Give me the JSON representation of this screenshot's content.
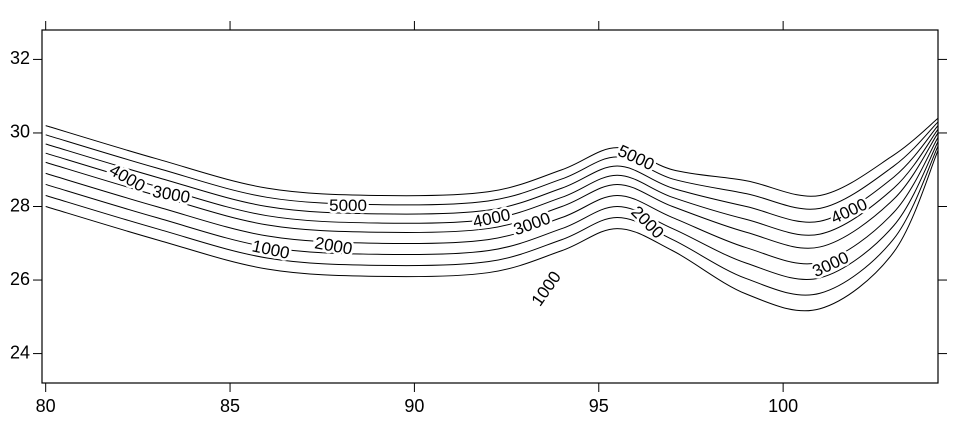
{
  "chart_data": {
    "type": "contour",
    "xlim": [
      79.9,
      104.2
    ],
    "ylim": [
      23.2,
      32.8
    ],
    "xticks": [
      80,
      85,
      90,
      95,
      100
    ],
    "yticks": [
      24,
      26,
      28,
      30,
      32
    ],
    "color": "#000000",
    "x": [
      80,
      83,
      86,
      89,
      92,
      94,
      95.5,
      97,
      99,
      101,
      103,
      104.2
    ],
    "levels": [
      1000,
      1500,
      2000,
      2500,
      3000,
      3500,
      4000,
      4500,
      5000
    ],
    "lines": [
      [
        28.0,
        27.1,
        26.3,
        26.1,
        26.2,
        26.8,
        27.4,
        26.8,
        25.62,
        25.22,
        26.76,
        29.52
      ],
      [
        28.3,
        27.4,
        26.6,
        26.4,
        26.5,
        27.1,
        27.7,
        27.1,
        26.04,
        25.64,
        27.12,
        29.64
      ],
      [
        28.6,
        27.7,
        26.9,
        26.7,
        26.8,
        27.4,
        28.0,
        27.4,
        26.46,
        26.06,
        27.48,
        29.76
      ],
      [
        28.9,
        28.0,
        27.2,
        27.0,
        27.1,
        27.7,
        28.3,
        27.7,
        26.88,
        26.48,
        27.84,
        29.88
      ],
      [
        29.2,
        28.3,
        27.5,
        27.3,
        27.4,
        28.0,
        28.6,
        28.0,
        27.3,
        26.9,
        28.2,
        30.0
      ],
      [
        29.45,
        28.55,
        27.75,
        27.55,
        27.65,
        28.25,
        28.85,
        28.25,
        27.65,
        27.25,
        28.5,
        30.1
      ],
      [
        29.7,
        28.8,
        28.0,
        27.8,
        27.9,
        28.5,
        29.1,
        28.5,
        28.0,
        27.6,
        28.8,
        30.2
      ],
      [
        29.95,
        29.05,
        28.25,
        28.05,
        28.15,
        28.75,
        29.35,
        28.75,
        28.35,
        27.95,
        29.1,
        30.3
      ],
      [
        30.2,
        29.3,
        28.5,
        28.3,
        28.4,
        29.0,
        29.6,
        29.0,
        28.7,
        28.3,
        29.4,
        30.4
      ]
    ],
    "contour_labels": [
      {
        "value": 4000,
        "x": 82.2,
        "y": 28.75,
        "angle": 30
      },
      {
        "value": 3000,
        "x": 83.4,
        "y": 28.3,
        "angle": 10
      },
      {
        "value": 5000,
        "x": 88.2,
        "y": 28.0,
        "angle": 0
      },
      {
        "value": 2000,
        "x": 87.8,
        "y": 26.9,
        "angle": 10
      },
      {
        "value": 1000,
        "x": 86.1,
        "y": 26.8,
        "angle": 12
      },
      {
        "value": 4000,
        "x": 92.1,
        "y": 27.65,
        "angle": -12
      },
      {
        "value": 3000,
        "x": 93.2,
        "y": 27.5,
        "angle": -20
      },
      {
        "value": 1000,
        "x": 93.6,
        "y": 25.75,
        "angle": -55
      },
      {
        "value": 5000,
        "x": 96.0,
        "y": 29.3,
        "angle": 25
      },
      {
        "value": 2000,
        "x": 96.3,
        "y": 27.55,
        "angle": 45
      },
      {
        "value": 4000,
        "x": 101.8,
        "y": 27.85,
        "angle": -25
      },
      {
        "value": 3000,
        "x": 101.3,
        "y": 26.4,
        "angle": -25
      }
    ]
  }
}
